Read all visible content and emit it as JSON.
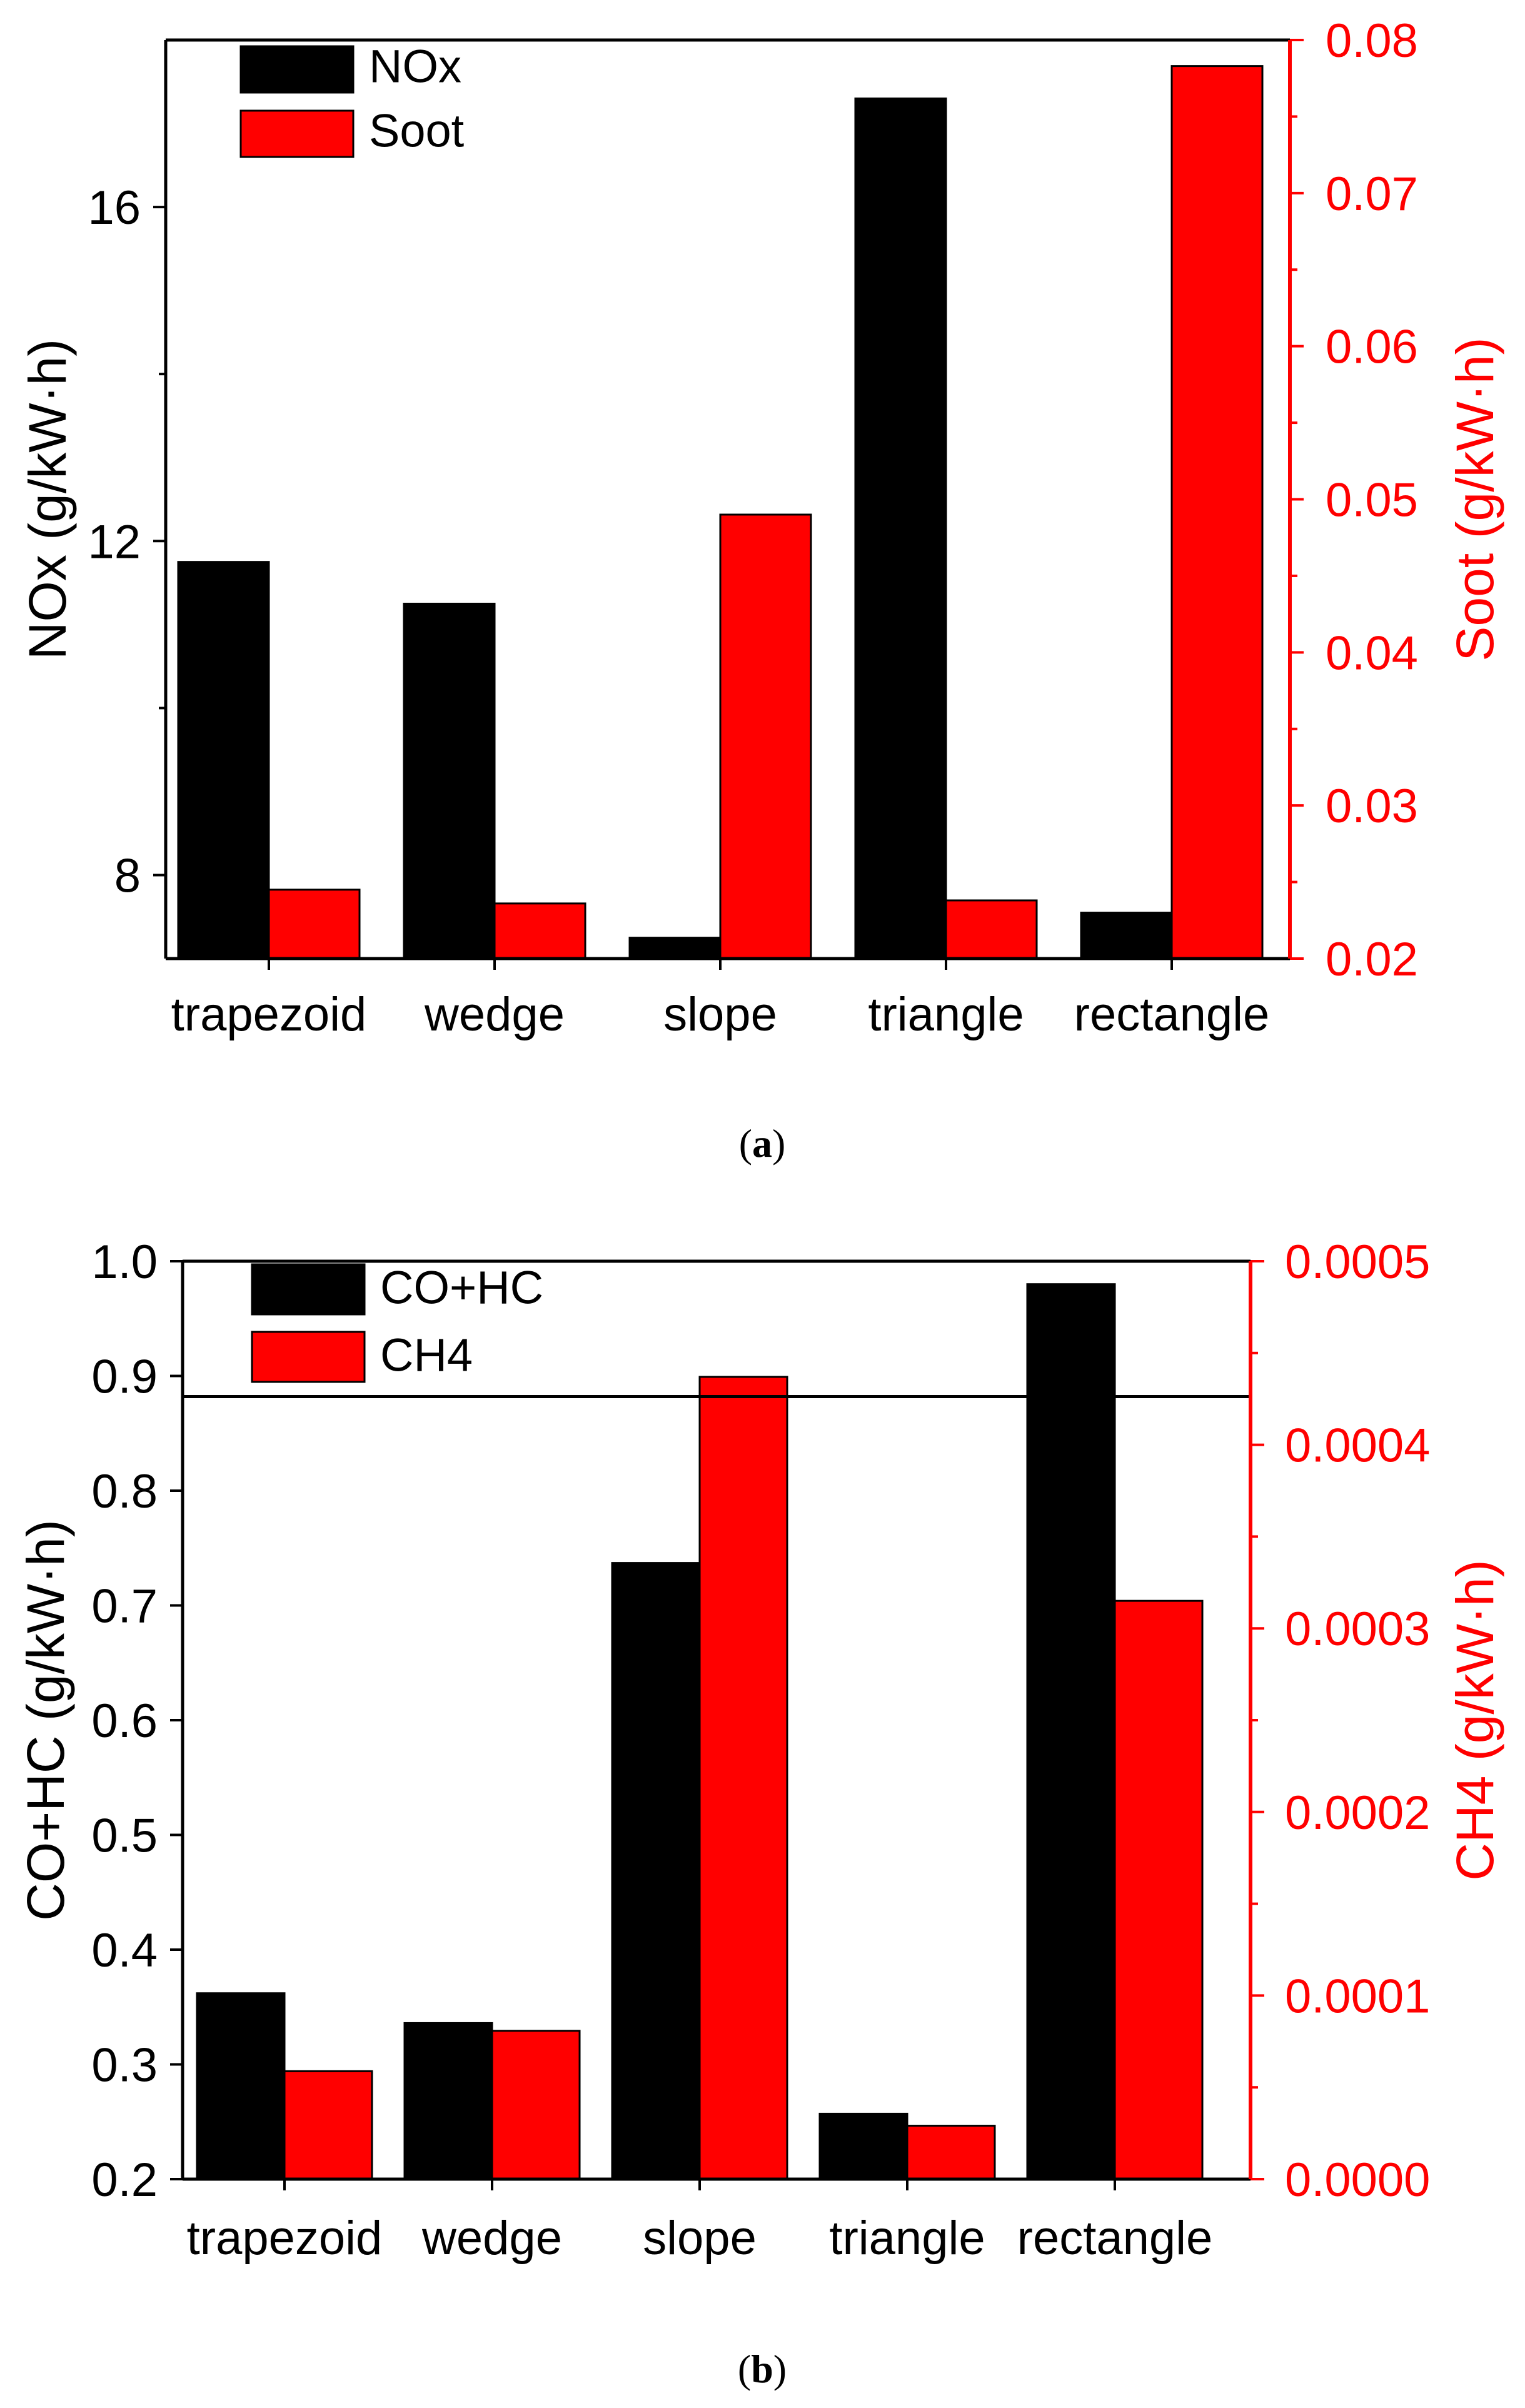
{
  "colors": {
    "left_series": "#000000",
    "right_series": "#ff0000",
    "axis": "#000000"
  },
  "chart_data": [
    {
      "type": "bar",
      "panel": "a",
      "caption_open": "(",
      "caption_letter": "a",
      "caption_close": ")",
      "categories": [
        "trapezoid",
        "wedge",
        "slope",
        "triangle",
        "rectangle"
      ],
      "series": [
        {
          "name": "NOx",
          "axis": "left",
          "values": [
            11.75,
            11.25,
            7.25,
            17.3,
            7.55
          ]
        },
        {
          "name": "Soot",
          "axis": "right",
          "values": [
            0.0245,
            0.0236,
            0.049,
            0.0238,
            0.0783
          ]
        }
      ],
      "ylabel_left": "NOx (g/kW·h)",
      "ylabel_right": "Soot (g/kW·h)",
      "ylim_left": [
        7.0,
        18.0
      ],
      "ylim_right": [
        0.02,
        0.08
      ],
      "yticks_left": [
        "8",
        "12",
        "16"
      ],
      "yticks_left_values": [
        8,
        12,
        16
      ],
      "yticks_right": [
        "0.02",
        "0.03",
        "0.04",
        "0.05",
        "0.06",
        "0.07",
        "0.08"
      ],
      "yticks_right_values": [
        0.02,
        0.03,
        0.04,
        0.05,
        0.06,
        0.07,
        0.08
      ],
      "legend": [
        "NOx",
        "Soot"
      ],
      "legend_position": "top-left",
      "grid": false
    },
    {
      "type": "bar",
      "panel": "b",
      "caption_open": "(",
      "caption_letter": "b",
      "caption_close": ")",
      "categories": [
        "trapezoid",
        "wedge",
        "slope",
        "triangle",
        "rectangle"
      ],
      "series": [
        {
          "name": "CO+HC",
          "axis": "left",
          "values": [
            0.362,
            0.336,
            0.737,
            0.257,
            0.98
          ]
        },
        {
          "name": "CH4",
          "axis": "right",
          "values": [
            5.88e-05,
            8.08e-05,
            0.000437,
            2.91e-05,
            0.000315
          ]
        }
      ],
      "ylabel_left": "CO+HC (g/kW·h)",
      "ylabel_right": "CH4 (g/kW·h)",
      "ylim_left": [
        0.2,
        1.0
      ],
      "ylim_right": [
        0.0,
        0.0005
      ],
      "yticks_left": [
        "0.2",
        "0.3",
        "0.4",
        "0.5",
        "0.6",
        "0.7",
        "0.8",
        "0.9",
        "1.0"
      ],
      "yticks_left_values": [
        0.2,
        0.3,
        0.4,
        0.5,
        0.6,
        0.7,
        0.8,
        0.9,
        1.0
      ],
      "yticks_right": [
        "0.0000",
        "0.0001",
        "0.0002",
        "0.0003",
        "0.0004",
        "0.0005"
      ],
      "yticks_right_values": [
        0.0,
        0.0001,
        0.0002,
        0.0003,
        0.0004,
        0.0005
      ],
      "reference_line_left": 0.882,
      "legend": [
        "CO+HC",
        "CH4"
      ],
      "legend_position": "top-left",
      "grid": false
    }
  ]
}
